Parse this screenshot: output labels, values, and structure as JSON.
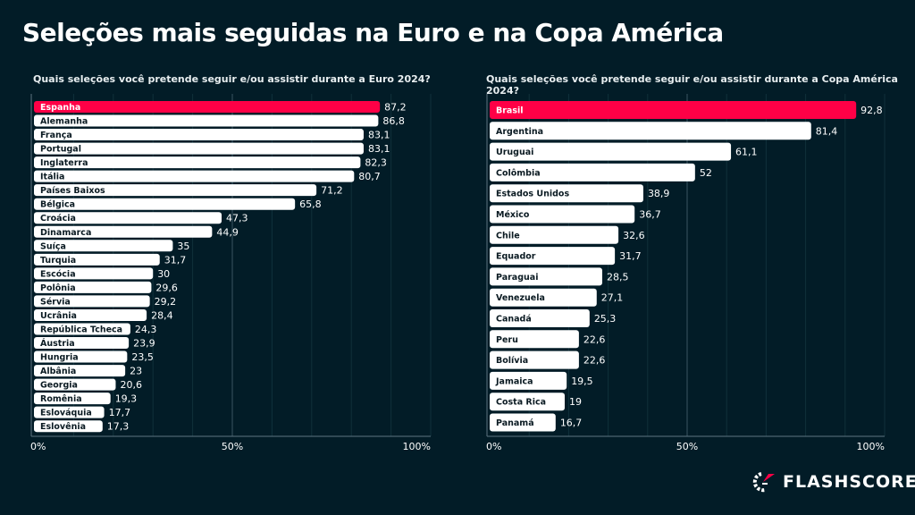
{
  "title": "Seleções mais seguidas na Euro e na Copa América",
  "brand": {
    "name": "FLASHSCORE",
    "logo_icon": "flashscore-speedometer-icon"
  },
  "colors": {
    "background": "#021c27",
    "highlight": "#ff0046",
    "bar": "#ffffff"
  },
  "chart_data": [
    {
      "type": "bar",
      "orientation": "horizontal",
      "title": "Quais seleções você pretende seguir e/ou assistir durante a Euro 2024?",
      "categories": [
        "Espanha",
        "Alemanha",
        "França",
        "Portugal",
        "Inglaterra",
        "Itália",
        "Países Baixos",
        "Bélgica",
        "Croácia",
        "Dinamarca",
        "Suíça",
        "Turquia",
        "Escócia",
        "Polônia",
        "Sérvia",
        "Ucrânia",
        "República Tcheca",
        "Áustria",
        "Hungria",
        "Albânia",
        "Georgia",
        "Romênia",
        "Eslováquia",
        "Eslovênia"
      ],
      "values": [
        87.2,
        86.8,
        83.1,
        83.1,
        82.3,
        80.7,
        71.2,
        65.8,
        47.3,
        44.9,
        35,
        31.7,
        30,
        29.6,
        29.2,
        28.4,
        24.3,
        23.9,
        23.5,
        23,
        20.6,
        19.3,
        17.7,
        17.3
      ],
      "value_labels": [
        "87,2",
        "86,8",
        "83,1",
        "83,1",
        "82,3",
        "80,7",
        "71,2",
        "65,8",
        "47,3",
        "44,9",
        "35",
        "31,7",
        "30",
        "29,6",
        "29,2",
        "28,4",
        "24,3",
        "23,9",
        "23,5",
        "23",
        "20,6",
        "19,3",
        "17,7",
        "17,3"
      ],
      "highlighted": "Espanha",
      "xlim": [
        0,
        100
      ],
      "xticks": [
        "0%",
        "50%",
        "100%"
      ],
      "grid": true
    },
    {
      "type": "bar",
      "orientation": "horizontal",
      "title": "Quais seleções você pretende seguir e/ou assistir durante a Copa América 2024?",
      "categories": [
        "Brasil",
        "Argentina",
        "Uruguai",
        "Colômbia",
        "Estados Unidos",
        "México",
        "Chile",
        "Equador",
        "Paraguai",
        "Venezuela",
        "Canadá",
        "Peru",
        "Bolívia",
        "Jamaica",
        "Costa Rica",
        "Panamá"
      ],
      "values": [
        92.8,
        81.4,
        61.1,
        52,
        38.9,
        36.7,
        32.6,
        31.7,
        28.5,
        27.1,
        25.3,
        22.6,
        22.6,
        19.5,
        19,
        16.7
      ],
      "value_labels": [
        "92,8",
        "81,4",
        "61,1",
        "52",
        "38,9",
        "36,7",
        "32,6",
        "31,7",
        "28,5",
        "27,1",
        "25,3",
        "22,6",
        "22,6",
        "19,5",
        "19",
        "16,7"
      ],
      "highlighted": "Brasil",
      "xlim": [
        0,
        100
      ],
      "xticks": [
        "0%",
        "50%",
        "100%"
      ],
      "grid": true
    }
  ]
}
